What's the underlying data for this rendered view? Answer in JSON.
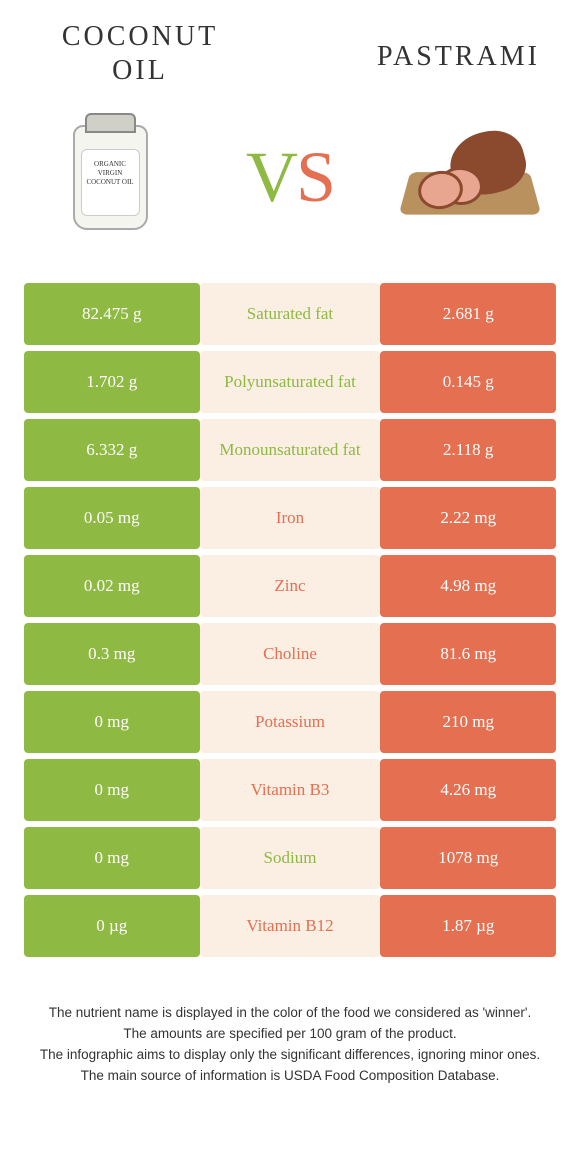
{
  "colors": {
    "left": "#8eb943",
    "right": "#e46f51",
    "mid_bg": "#fbeee3"
  },
  "foods": {
    "left": {
      "name": "Coconut oil"
    },
    "right": {
      "name": "pastrami"
    }
  },
  "vs": {
    "v": "V",
    "s": "S"
  },
  "rows": [
    {
      "left": "82.475 g",
      "label": "Saturated fat",
      "right": "2.681 g",
      "winner": "left"
    },
    {
      "left": "1.702 g",
      "label": "Polyunsaturated fat",
      "right": "0.145 g",
      "winner": "left"
    },
    {
      "left": "6.332 g",
      "label": "Monounsaturated fat",
      "right": "2.118 g",
      "winner": "left"
    },
    {
      "left": "0.05 mg",
      "label": "Iron",
      "right": "2.22 mg",
      "winner": "right"
    },
    {
      "left": "0.02 mg",
      "label": "Zinc",
      "right": "4.98 mg",
      "winner": "right"
    },
    {
      "left": "0.3 mg",
      "label": "Choline",
      "right": "81.6 mg",
      "winner": "right"
    },
    {
      "left": "0 mg",
      "label": "Potassium",
      "right": "210 mg",
      "winner": "right"
    },
    {
      "left": "0 mg",
      "label": "Vitamin B3",
      "right": "4.26 mg",
      "winner": "right"
    },
    {
      "left": "0 mg",
      "label": "Sodium",
      "right": "1078 mg",
      "winner": "left"
    },
    {
      "left": "0 µg",
      "label": "Vitamin B12",
      "right": "1.87 µg",
      "winner": "right"
    }
  ],
  "footer": {
    "line1": "The nutrient name is displayed in the color of the food we considered as 'winner'.",
    "line2": "The amounts are specified per 100 gram of the product.",
    "line3": "The infographic aims to display only the significant differences, ignoring minor ones.",
    "line4": "The main source of information is USDA Food Composition Database."
  },
  "jar_label": "ORGANIC VIRGIN COCONUT OIL"
}
